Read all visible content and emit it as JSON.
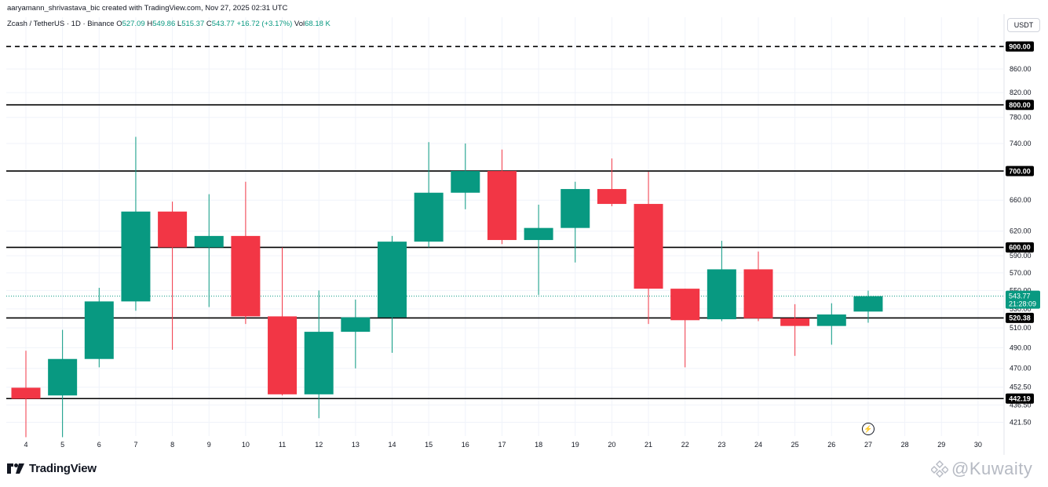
{
  "header": {
    "credit": "aaryamann_shrivastava_bic created with TradingView.com, Nov 27, 2025 02:31 UTC"
  },
  "legend": {
    "symbol": "Zcash / TetherUS · 1D · Binance",
    "open_label": "O",
    "open": "527.09",
    "high_label": "H",
    "high": "549.86",
    "low_label": "L",
    "low": "515.37",
    "close_label": "C",
    "close": "543.77",
    "change": "+16.72 (+3.17%)",
    "vol_label": "Vol",
    "vol": "68.18 K"
  },
  "currency_button": "USDT",
  "logo": {
    "name": "TradingView"
  },
  "watermark": {
    "text": "@Kuwaity"
  },
  "colors": {
    "up": "#089981",
    "down": "#f23645",
    "line": "#000000",
    "grid": "#f0f3fa",
    "text": "#131722"
  },
  "chart_data": {
    "type": "candlestick",
    "x_axis_labels": [
      "4",
      "5",
      "6",
      "7",
      "8",
      "9",
      "10",
      "11",
      "12",
      "13",
      "14",
      "15",
      "16",
      "17",
      "18",
      "19",
      "20",
      "21",
      "22",
      "23",
      "24",
      "25",
      "26",
      "27",
      "28",
      "29",
      "30"
    ],
    "y_axis_labels": [
      "900.00",
      "860.00",
      "820.00",
      "800.00",
      "780.00",
      "740.00",
      "700.00",
      "660.00",
      "620.00",
      "600.00",
      "590.00",
      "570.00",
      "550.00",
      "530.00",
      "520.38",
      "510.00",
      "490.00",
      "470.00",
      "452.50",
      "442.19",
      "436.50",
      "421.50"
    ],
    "y_scale": "log",
    "ylim": [
      410,
      925
    ],
    "candles": [
      {
        "day": "4",
        "open": 452,
        "high": 487,
        "low": 409,
        "close": 442
      },
      {
        "day": "5",
        "open": 445,
        "high": 508,
        "low": 409,
        "close": 479
      },
      {
        "day": "6",
        "open": 479,
        "high": 553,
        "low": 471,
        "close": 538
      },
      {
        "day": "7",
        "open": 538,
        "high": 750,
        "low": 528,
        "close": 645
      },
      {
        "day": "8",
        "open": 645,
        "high": 658,
        "low": 488,
        "close": 600
      },
      {
        "day": "9",
        "open": 600,
        "high": 668,
        "low": 532,
        "close": 614
      },
      {
        "day": "10",
        "open": 614,
        "high": 685,
        "low": 514,
        "close": 522
      },
      {
        "day": "11",
        "open": 522,
        "high": 600,
        "low": 445,
        "close": 446
      },
      {
        "day": "12",
        "open": 446,
        "high": 550,
        "low": 425,
        "close": 506
      },
      {
        "day": "13",
        "open": 506,
        "high": 540,
        "low": 470,
        "close": 521
      },
      {
        "day": "14",
        "open": 521,
        "high": 614,
        "low": 485,
        "close": 607
      },
      {
        "day": "15",
        "open": 607,
        "high": 742,
        "low": 600,
        "close": 670
      },
      {
        "day": "16",
        "open": 670,
        "high": 740,
        "low": 648,
        "close": 700
      },
      {
        "day": "17",
        "open": 700,
        "high": 731,
        "low": 604,
        "close": 609
      },
      {
        "day": "18",
        "open": 609,
        "high": 654,
        "low": 545,
        "close": 624
      },
      {
        "day": "19",
        "open": 624,
        "high": 685,
        "low": 582,
        "close": 675
      },
      {
        "day": "20",
        "open": 675,
        "high": 718,
        "low": 652,
        "close": 655
      },
      {
        "day": "21",
        "open": 655,
        "high": 699,
        "low": 514,
        "close": 552
      },
      {
        "day": "22",
        "open": 552,
        "high": 552,
        "low": 471,
        "close": 518
      },
      {
        "day": "23",
        "open": 519,
        "high": 608,
        "low": 517,
        "close": 574
      },
      {
        "day": "24",
        "open": 574,
        "high": 595,
        "low": 517,
        "close": 520
      },
      {
        "day": "25",
        "open": 520,
        "high": 535,
        "low": 482,
        "close": 512
      },
      {
        "day": "26",
        "open": 512,
        "high": 536,
        "low": 493,
        "close": 524
      },
      {
        "day": "27",
        "open": 527.09,
        "high": 549.86,
        "low": 515.37,
        "close": 543.77
      }
    ],
    "horizontal_lines": [
      {
        "value": 900.0,
        "label": "900.00",
        "style": "dashed"
      },
      {
        "value": 800.0,
        "label": "800.00",
        "style": "solid"
      },
      {
        "value": 700.0,
        "label": "700.00",
        "style": "solid"
      },
      {
        "value": 600.0,
        "label": "600.00",
        "style": "solid"
      },
      {
        "value": 520.38,
        "label": "520.38",
        "style": "solid"
      },
      {
        "value": 442.19,
        "label": "442.19",
        "style": "solid"
      }
    ],
    "last_price": {
      "value": 543.77,
      "label": "543.77",
      "countdown": "21:28:09"
    },
    "grid": true
  }
}
